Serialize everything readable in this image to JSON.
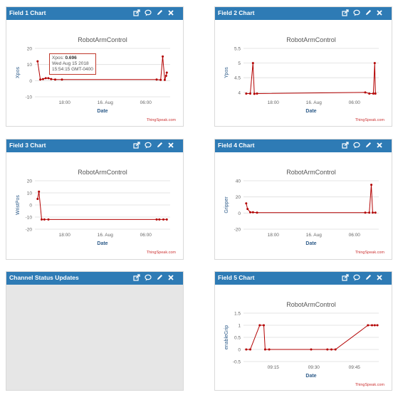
{
  "panels": [
    {
      "id": "p1",
      "title": "Field 1 Chart"
    },
    {
      "id": "p2",
      "title": "Field 2 Chart"
    },
    {
      "id": "p3",
      "title": "Field 3 Chart"
    },
    {
      "id": "p4",
      "title": "Field 4 Chart"
    },
    {
      "id": "p5",
      "title": "Channel Status Updates"
    },
    {
      "id": "p6",
      "title": "Field 5 Chart"
    }
  ],
  "credit": "ThingSpeak.com",
  "line_color": "#b30000",
  "tooltip": {
    "label": "Xpos:",
    "value": "0.696",
    "date": "Wed Aug 15 2018",
    "time": "15:54:15 GMT-0400"
  },
  "chart_data": [
    {
      "type": "line",
      "title": "RobotArmControl",
      "xlabel": "Date",
      "ylabel": "Xpos",
      "yticks": [
        "20",
        "10",
        "0",
        "-10"
      ],
      "ylim": [
        -10,
        20
      ],
      "xticks": [
        "18:00",
        "16. Aug",
        "06:00"
      ],
      "series": [
        {
          "values": [
            [
              0.02,
              12
            ],
            [
              0.04,
              0.7
            ],
            [
              0.06,
              1
            ],
            [
              0.08,
              1.5
            ],
            [
              0.1,
              1.5
            ],
            [
              0.12,
              1
            ],
            [
              0.15,
              0.7
            ],
            [
              0.2,
              0.7
            ],
            [
              0.9,
              0.7
            ],
            [
              0.93,
              0.5
            ],
            [
              0.945,
              15
            ],
            [
              0.96,
              0.5
            ],
            [
              0.97,
              3
            ],
            [
              0.975,
              5
            ]
          ]
        }
      ]
    },
    {
      "type": "line",
      "title": "RobotArmControl",
      "xlabel": "Date",
      "ylabel": "Ypos",
      "yticks": [
        "5.5",
        "5",
        "4.5",
        "4"
      ],
      "ylim": [
        3.85,
        5.5
      ],
      "xticks": [
        "18:00",
        "16. Aug",
        "06:00"
      ],
      "series": [
        {
          "values": [
            [
              0.02,
              3.96
            ],
            [
              0.05,
              3.96
            ],
            [
              0.07,
              5
            ],
            [
              0.08,
              3.95
            ],
            [
              0.1,
              3.96
            ],
            [
              0.9,
              4
            ],
            [
              0.93,
              3.96
            ],
            [
              0.96,
              3.96
            ],
            [
              0.97,
              5
            ],
            [
              0.975,
              3.96
            ]
          ]
        }
      ]
    },
    {
      "type": "line",
      "title": "RobotArmControl",
      "xlabel": "Date",
      "ylabel": "WristPos",
      "yticks": [
        "20",
        "10",
        "0",
        "-10",
        "-20"
      ],
      "ylim": [
        -20,
        20
      ],
      "xticks": [
        "18:00",
        "16. Aug",
        "06:00"
      ],
      "series": [
        {
          "values": [
            [
              0.02,
              5
            ],
            [
              0.03,
              11
            ],
            [
              0.05,
              -12
            ],
            [
              0.07,
              -12
            ],
            [
              0.1,
              -12
            ],
            [
              0.9,
              -12
            ],
            [
              0.92,
              -12
            ],
            [
              0.95,
              -12
            ],
            [
              0.975,
              -12
            ]
          ]
        }
      ]
    },
    {
      "type": "line",
      "title": "RobotArmControl",
      "xlabel": "Date",
      "ylabel": "Gripper",
      "yticks": [
        "40",
        "20",
        "0",
        "-20"
      ],
      "ylim": [
        -20,
        40
      ],
      "xticks": [
        "18:00",
        "16. Aug",
        "06:00"
      ],
      "series": [
        {
          "values": [
            [
              0.02,
              12
            ],
            [
              0.03,
              5
            ],
            [
              0.05,
              1
            ],
            [
              0.07,
              1
            ],
            [
              0.1,
              0.5
            ],
            [
              0.9,
              0.5
            ],
            [
              0.93,
              0.5
            ],
            [
              0.945,
              35
            ],
            [
              0.955,
              0.5
            ],
            [
              0.975,
              0.5
            ]
          ]
        }
      ]
    },
    {
      "type": "line",
      "title": "RobotArmControl",
      "xlabel": "Date",
      "ylabel": "enableGrip",
      "yticks": [
        "1.5",
        "1",
        "0.5",
        "0",
        "-0.5"
      ],
      "ylim": [
        -0.5,
        1.5
      ],
      "xticks": [
        "09:15",
        "09:30",
        "09:45"
      ],
      "series": [
        {
          "values": [
            [
              0.02,
              0
            ],
            [
              0.05,
              0
            ],
            [
              0.12,
              1
            ],
            [
              0.15,
              1
            ],
            [
              0.16,
              0
            ],
            [
              0.19,
              0
            ],
            [
              0.5,
              0
            ],
            [
              0.62,
              0
            ],
            [
              0.65,
              0
            ],
            [
              0.68,
              0
            ],
            [
              0.92,
              1
            ],
            [
              0.95,
              1
            ],
            [
              0.97,
              1
            ],
            [
              0.99,
              1
            ]
          ]
        }
      ]
    }
  ]
}
